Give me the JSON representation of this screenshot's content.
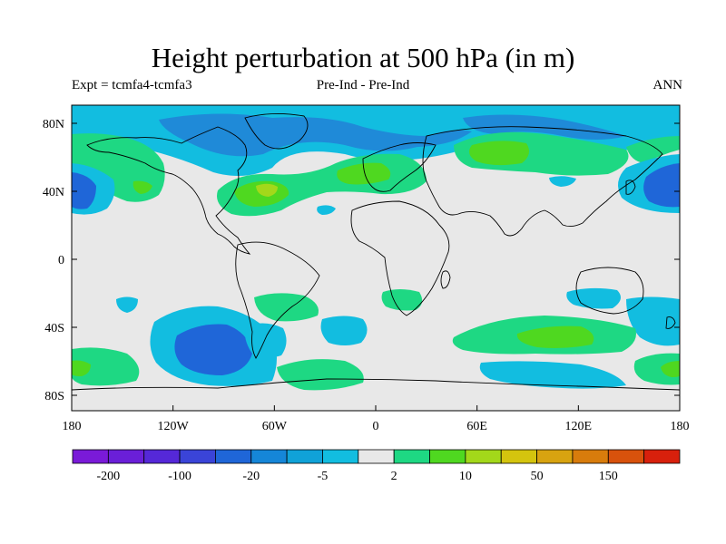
{
  "title": "Height perturbation at 500 hPa (in m)",
  "subtitle_left": "Expt = tcmfa4-tcmfa3",
  "subtitle_center": "Pre-Ind - Pre-Ind",
  "subtitle_right": "ANN",
  "chart_data": {
    "type": "heatmap",
    "projection": "cylindrical-equidistant",
    "title": "Height perturbation at 500 hPa (in m)",
    "units": "m",
    "xlim": [
      -180,
      180
    ],
    "ylim": [
      -90,
      90
    ],
    "x_ticks": [
      "180",
      "120W",
      "60W",
      "0",
      "60E",
      "120E",
      "180"
    ],
    "y_ticks": [
      "80N",
      "40N",
      "0",
      "40S",
      "80S"
    ],
    "colorbar_labels": [
      "-200",
      "-100",
      "-20",
      "-5",
      "2",
      "10",
      "50",
      "150"
    ],
    "colorbar_colors": [
      "#7a1ad8",
      "#6a1fd8",
      "#5528d8",
      "#3a44d8",
      "#1f66d8",
      "#1586d8",
      "#10a2d8",
      "#12bde0",
      "#e8e8e8",
      "#1ed883",
      "#4fd820",
      "#a3d81a",
      "#d4c40e",
      "#d8a310",
      "#d87c0c",
      "#d8520c",
      "#d8200c"
    ],
    "background_color": "#e8e8e8",
    "regions": [
      {
        "lon": -180,
        "lat": 40,
        "rlon": 25,
        "rlat": 16,
        "level": "-20 to -5",
        "color": "#1f66d8"
      },
      {
        "lon": 180,
        "lat": 40,
        "rlon": 25,
        "rlat": 16,
        "level": "-20 to -5",
        "color": "#1f66d8"
      },
      {
        "lon": -100,
        "lat": -55,
        "rlon": 25,
        "rlat": 12,
        "level": "-20 to -5",
        "color": "#1f66d8"
      },
      {
        "lon": -75,
        "lat": 42,
        "rlon": 12,
        "rlat": 6,
        "level": "10 to 50",
        "color": "#a3d81a"
      },
      {
        "lon": 85,
        "lat": -42,
        "rlon": 18,
        "rlat": 5,
        "level": "10 to 50",
        "color": "#4fd820"
      },
      {
        "lon": 180,
        "lat": -62,
        "rlon": 10,
        "rlat": 4,
        "level": "10 to 50",
        "color": "#4fd820"
      },
      {
        "lon": -180,
        "lat": -62,
        "rlon": 10,
        "rlat": 4,
        "level": "10 to 50",
        "color": "#4fd820"
      },
      {
        "lon": 60,
        "lat": 58,
        "rlon": 30,
        "rlat": 10,
        "level": "2 to 10",
        "color": "#1ed883"
      },
      {
        "lon": -5,
        "lat": 50,
        "rlon": 15,
        "rlat": 8,
        "level": "2 to 10",
        "color": "#1ed883"
      },
      {
        "lon": -60,
        "lat": 80,
        "rlon": 40,
        "rlat": 8,
        "level": "-5 to 2",
        "color": "#12bde0"
      }
    ]
  }
}
